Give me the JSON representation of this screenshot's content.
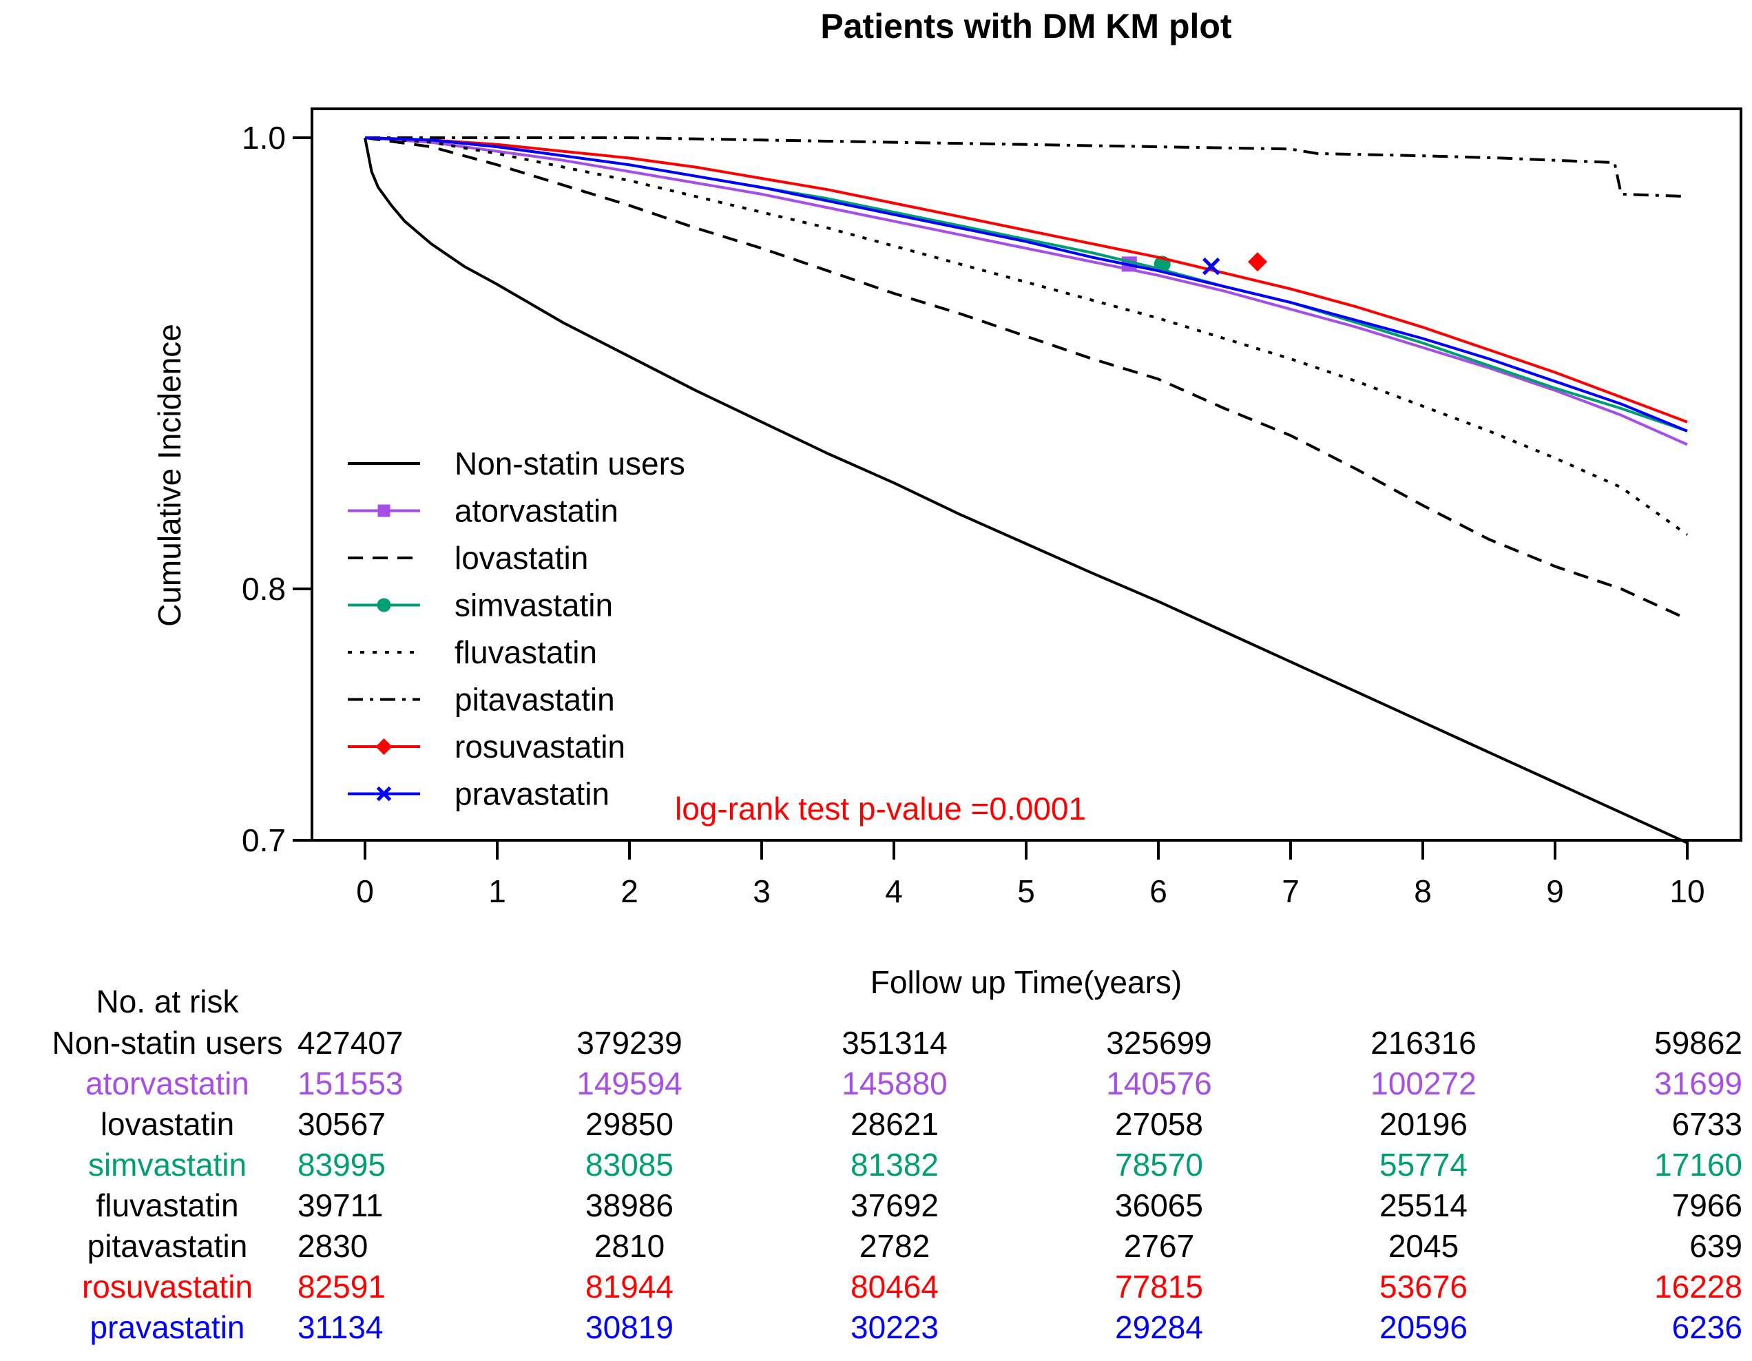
{
  "chart_data": {
    "type": "line",
    "title": "Patients with DM KM plot",
    "xlabel": "Follow up Time(years)",
    "ylabel": "Cumulative Incidence",
    "xlim": [
      0,
      10
    ],
    "ylim": [
      0.7,
      1.0
    ],
    "x_ticks": [
      0,
      1,
      2,
      3,
      4,
      5,
      6,
      7,
      8,
      9,
      10
    ],
    "x_tick_labels": [
      "0",
      "1",
      "2",
      "3",
      "4",
      "5",
      "6",
      "7",
      "8",
      "9",
      "10"
    ],
    "y_ticks": [
      0.7,
      0.8,
      1.0
    ],
    "y_tick_labels": [
      "0.7",
      "0.8",
      "1.0"
    ],
    "annotation": "log-rank test p-value =0.0001",
    "annotation_color": "#ff0000",
    "legend_position": "bottom-left",
    "series": [
      {
        "name": "Non-statin users",
        "color": "#000000",
        "dash": "solid",
        "marker": "none",
        "x": [
          0,
          0.05,
          0.1,
          0.2,
          0.3,
          0.5,
          0.75,
          1,
          1.5,
          2,
          2.5,
          3,
          3.5,
          4,
          4.5,
          5,
          5.5,
          6,
          6.5,
          7,
          7.5,
          8,
          8.5,
          9,
          9.5,
          10
        ],
        "y": [
          1.0,
          0.985,
          0.978,
          0.97,
          0.963,
          0.953,
          0.943,
          0.935,
          0.918,
          0.903,
          0.888,
          0.874,
          0.86,
          0.847,
          0.833,
          0.82,
          0.807,
          0.795,
          0.783,
          0.771,
          0.759,
          0.747,
          0.735,
          0.723,
          0.711,
          0.699
        ]
      },
      {
        "name": "atorvastatin",
        "color": "#a64ee6",
        "dash": "solid",
        "marker": "square",
        "marker_at": [
          5.78,
          0.944
        ],
        "x": [
          0,
          0.5,
          1,
          1.5,
          2,
          2.5,
          3,
          3.5,
          4,
          4.5,
          5,
          5.5,
          6,
          6.5,
          7,
          7.5,
          8,
          8.5,
          9,
          9.5,
          10
        ],
        "y": [
          1.0,
          0.998,
          0.994,
          0.99,
          0.985,
          0.98,
          0.975,
          0.969,
          0.963,
          0.957,
          0.951,
          0.945,
          0.939,
          0.932,
          0.924,
          0.916,
          0.907,
          0.898,
          0.888,
          0.877,
          0.864
        ]
      },
      {
        "name": "lovastatin",
        "color": "#000000",
        "dash": "long",
        "marker": "none",
        "x": [
          0,
          0.5,
          1,
          1.5,
          2,
          2.5,
          3,
          3.5,
          4,
          4.5,
          5,
          5.5,
          6,
          6.5,
          7,
          7.5,
          8,
          8.5,
          9,
          9.5,
          10
        ],
        "y": [
          1.0,
          0.996,
          0.988,
          0.979,
          0.97,
          0.96,
          0.951,
          0.941,
          0.931,
          0.922,
          0.912,
          0.902,
          0.893,
          0.88,
          0.868,
          0.853,
          0.837,
          0.822,
          0.81,
          0.8,
          0.788
        ]
      },
      {
        "name": "simvastatin",
        "color": "#009e73",
        "dash": "solid",
        "marker": "circle",
        "marker_at": [
          6.03,
          0.944
        ],
        "x": [
          0,
          0.5,
          1,
          1.5,
          2,
          2.5,
          3,
          3.5,
          4,
          4.5,
          5,
          5.5,
          6,
          6.5,
          7,
          7.5,
          8,
          8.5,
          9,
          9.5,
          10
        ],
        "y": [
          1.0,
          0.999,
          0.996,
          0.992,
          0.988,
          0.983,
          0.978,
          0.973,
          0.967,
          0.961,
          0.955,
          0.949,
          0.942,
          0.934,
          0.927,
          0.918,
          0.909,
          0.899,
          0.889,
          0.88,
          0.87
        ]
      },
      {
        "name": "fluvastatin",
        "color": "#000000",
        "dash": "dotted",
        "marker": "none",
        "x": [
          0,
          0.5,
          1,
          1.5,
          2,
          2.5,
          3,
          3.5,
          4,
          4.5,
          5,
          5.5,
          6,
          6.5,
          7,
          7.5,
          8,
          8.5,
          9,
          9.5,
          10
        ],
        "y": [
          1.0,
          0.998,
          0.993,
          0.987,
          0.981,
          0.974,
          0.967,
          0.96,
          0.952,
          0.944,
          0.936,
          0.928,
          0.92,
          0.911,
          0.902,
          0.892,
          0.881,
          0.87,
          0.858,
          0.845,
          0.824
        ]
      },
      {
        "name": "pitavastatin",
        "color": "#000000",
        "dash": "dashdot",
        "marker": "none",
        "x": [
          0,
          1,
          2,
          3,
          4,
          5,
          6,
          7,
          7.2,
          8,
          8.6,
          9,
          9.45,
          9.5,
          10
        ],
        "y": [
          1.0,
          1.0,
          1.0,
          0.999,
          0.998,
          0.997,
          0.996,
          0.995,
          0.993,
          0.992,
          0.991,
          0.99,
          0.989,
          0.975,
          0.974
        ]
      },
      {
        "name": "rosuvastatin",
        "color": "#ff0000",
        "dash": "solid",
        "marker": "diamond",
        "marker_at": [
          6.75,
          0.945
        ],
        "x": [
          0,
          0.5,
          1,
          1.5,
          2,
          2.5,
          3,
          3.5,
          4,
          4.5,
          5,
          5.5,
          6,
          6.5,
          7,
          7.5,
          8,
          8.5,
          9,
          9.5,
          10
        ],
        "y": [
          1.0,
          0.999,
          0.997,
          0.994,
          0.991,
          0.987,
          0.982,
          0.977,
          0.971,
          0.965,
          0.959,
          0.953,
          0.947,
          0.94,
          0.933,
          0.925,
          0.916,
          0.906,
          0.896,
          0.885,
          0.874
        ]
      },
      {
        "name": "pravastatin",
        "color": "#0000ff",
        "dash": "solid",
        "marker": "x",
        "marker_at": [
          6.4,
          0.943
        ],
        "x": [
          0,
          0.5,
          1,
          1.5,
          2,
          2.5,
          3,
          3.5,
          4,
          4.5,
          5,
          5.5,
          6,
          6.5,
          7,
          7.5,
          8,
          8.5,
          9,
          9.5,
          10
        ],
        "y": [
          1.0,
          0.999,
          0.996,
          0.992,
          0.988,
          0.983,
          0.978,
          0.972,
          0.966,
          0.96,
          0.954,
          0.947,
          0.941,
          0.934,
          0.927,
          0.919,
          0.911,
          0.902,
          0.892,
          0.882,
          0.87
        ]
      }
    ]
  },
  "risk_table": {
    "header": "No. at risk",
    "times": [
      0,
      2,
      4,
      6,
      8,
      10
    ],
    "rows": [
      {
        "label": "Non-statin users",
        "color": "#000000",
        "values": [
          "427407",
          "379239",
          "351314",
          "325699",
          "216316",
          "59862"
        ]
      },
      {
        "label": "atorvastatin",
        "color": "#a64ee6",
        "values": [
          "151553",
          "149594",
          "145880",
          "140576",
          "100272",
          "31699"
        ]
      },
      {
        "label": "lovastatin",
        "color": "#000000",
        "values": [
          "30567",
          "29850",
          "28621",
          "27058",
          "20196",
          "6733"
        ]
      },
      {
        "label": "simvastatin",
        "color": "#009e73",
        "values": [
          "83995",
          "83085",
          "81382",
          "78570",
          "55774",
          "17160"
        ]
      },
      {
        "label": "fluvastatin",
        "color": "#000000",
        "values": [
          "39711",
          "38986",
          "37692",
          "36065",
          "25514",
          "7966"
        ]
      },
      {
        "label": "pitavastatin",
        "color": "#000000",
        "values": [
          "2830",
          "2810",
          "2782",
          "2767",
          "2045",
          "639"
        ]
      },
      {
        "label": "rosuvastatin",
        "color": "#ff0000",
        "values": [
          "82591",
          "81944",
          "80464",
          "77815",
          "53676",
          "16228"
        ]
      },
      {
        "label": "pravastatin",
        "color": "#0000ff",
        "values": [
          "31134",
          "30819",
          "30223",
          "29284",
          "20596",
          "6236"
        ]
      }
    ]
  }
}
